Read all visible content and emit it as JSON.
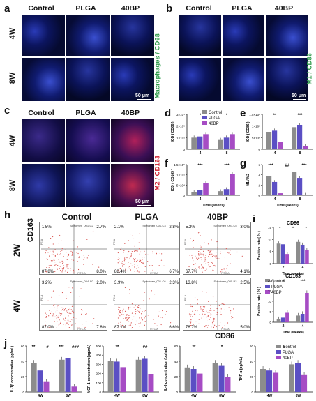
{
  "panels": {
    "a": "a",
    "b": "b",
    "c": "c",
    "d": "d",
    "e": "e",
    "f": "f",
    "g": "g",
    "h": "h",
    "i": "i",
    "j": "j"
  },
  "micro_cols": [
    "Control",
    "PLGA",
    "40BP"
  ],
  "weeks_rows": [
    "4W",
    "8W"
  ],
  "flow_rows": [
    "2W",
    "4W"
  ],
  "labels": {
    "a_side": "Macrophages / CD68",
    "b_side": "M1 / CD86",
    "c_side": "M2 / CD163",
    "scale": "50 μm",
    "flow_y": "CD163",
    "flow_x": "CD86",
    "flow_axis": "FITC-A",
    "flow_axis_y": "PE-A"
  },
  "colors": {
    "control": "#8c8c8c",
    "plga": "#5b4fc4",
    "bp40": "#a64cc4"
  },
  "legend": [
    "Control",
    "PLGA",
    "40BP"
  ],
  "flow_plots": [
    {
      "row": "2W",
      "col": "Control",
      "name": "Specimen_001-C2",
      "q1": "1.5%",
      "q2": "2.7%",
      "q3": "87.8%",
      "q4": "8.0%"
    },
    {
      "row": "2W",
      "col": "PLGA",
      "name": "Specimen_001-C3",
      "q1": "2.1%",
      "q2": "2.8%",
      "q3": "88.4%",
      "q4": "6.7%"
    },
    {
      "row": "2W",
      "col": "40BP",
      "name": "Specimen_001-C5",
      "q1": "5.2%",
      "q2": "3.0%",
      "q3": "67.7%",
      "q4": "4.1%"
    },
    {
      "row": "4W",
      "col": "Control",
      "name": "Specimen_004-A0",
      "q1": "3.2%",
      "q2": "2.0%",
      "q3": "87.0%",
      "q4": "7.8%"
    },
    {
      "row": "4W",
      "col": "PLGA",
      "name": "Specimen_001-C6",
      "q1": "3.9%",
      "q2": "2.3%",
      "q3": "87.1%",
      "q4": "6.6%"
    },
    {
      "row": "4W",
      "col": "40BP",
      "name": "Specimen_005-B2",
      "q1": "13.8%",
      "q2": "2.5%",
      "q3": "78.7%",
      "q4": "5.0%"
    }
  ],
  "chart_data": [
    {
      "panel": "d",
      "type": "bar",
      "ylabel": "IOD ( CD68 )",
      "xlabel": "",
      "categories": [
        "4",
        "8"
      ],
      "ytick_labels": [
        "0",
        "1×10⁵",
        "2×10⁵",
        "3×10⁵"
      ],
      "ylim": [
        0,
        3
      ],
      "series": [
        {
          "name": "Control",
          "values": [
            1.0,
            0.8
          ]
        },
        {
          "name": "PLGA",
          "values": [
            1.1,
            1.0
          ]
        },
        {
          "name": "40BP",
          "values": [
            1.3,
            1.3
          ]
        }
      ],
      "annotations": [
        "*",
        "*"
      ]
    },
    {
      "panel": "e",
      "type": "bar",
      "ylabel": "IOD ( CD86 )",
      "xlabel": "",
      "categories": [
        "4",
        "8"
      ],
      "ytick_labels": [
        "0",
        "5×10⁴",
        "1×10⁵",
        "1.5×10⁵"
      ],
      "ylim": [
        0,
        1.5
      ],
      "series": [
        {
          "name": "Control",
          "values": [
            0.75,
            0.95
          ]
        },
        {
          "name": "PLGA",
          "values": [
            0.8,
            1.05
          ]
        },
        {
          "name": "40BP",
          "values": [
            0.3,
            0.15
          ]
        }
      ],
      "annotations": [
        "**",
        "***"
      ]
    },
    {
      "panel": "f",
      "type": "bar",
      "ylabel": "IOD ( CD163 )",
      "xlabel": "Time (weeks)",
      "categories": [
        "4",
        "8"
      ],
      "ytick_labels": [
        "0",
        "5×10⁴",
        "1×10⁵",
        "1.5×10⁵"
      ],
      "ylim": [
        0,
        1.5
      ],
      "series": [
        {
          "name": "Control",
          "values": [
            0.15,
            0.2
          ]
        },
        {
          "name": "PLGA",
          "values": [
            0.25,
            0.3
          ]
        },
        {
          "name": "40BP",
          "values": [
            0.6,
            1.05
          ]
        }
      ],
      "annotations": [
        "***",
        "***"
      ]
    },
    {
      "panel": "g",
      "type": "bar",
      "ylabel": "M1 / M2",
      "xlabel": "Time (weeks)",
      "categories": [
        "4",
        "8"
      ],
      "ytick_labels": [
        "0",
        "2",
        "4",
        "6"
      ],
      "ylim": [
        0,
        6
      ],
      "series": [
        {
          "name": "Control",
          "values": [
            3.8,
            4.6
          ]
        },
        {
          "name": "PLGA",
          "values": [
            2.6,
            3.4
          ]
        },
        {
          "name": "40BP",
          "values": [
            0.4,
            0.1
          ]
        }
      ],
      "annotations": [
        "***",
        "##",
        "***"
      ]
    },
    {
      "panel": "i-top",
      "type": "bar",
      "title": "CD86",
      "ylabel": "Positive rate ( % )",
      "xlabel": "Time (weeks)",
      "categories": [
        "2",
        "4"
      ],
      "ytick_labels": [
        "0",
        "5",
        "10",
        "15"
      ],
      "ylim": [
        0,
        15
      ],
      "series": [
        {
          "name": "Control",
          "values": [
            8.3,
            9.0
          ]
        },
        {
          "name": "PLGA",
          "values": [
            8.0,
            7.8
          ]
        },
        {
          "name": "40BP",
          "values": [
            4.0,
            5.6
          ]
        }
      ],
      "annotations": [
        "*",
        "**",
        "*"
      ]
    },
    {
      "panel": "i-bottom",
      "type": "bar",
      "title": "CD163",
      "ylabel": "Positive rate ( % )",
      "xlabel": "Time (weeks)",
      "categories": [
        "2",
        "4"
      ],
      "ytick_labels": [
        "0",
        "5",
        "10",
        "15",
        "20"
      ],
      "ylim": [
        0,
        20
      ],
      "series": [
        {
          "name": "Control",
          "values": [
            1.5,
            3.2
          ]
        },
        {
          "name": "PLGA",
          "values": [
            2.2,
            4.0
          ]
        },
        {
          "name": "40BP",
          "values": [
            4.5,
            14.0
          ]
        }
      ],
      "annotations": [
        "*",
        "***"
      ]
    },
    {
      "panel": "j1",
      "type": "bar",
      "ylabel": "IL-1β concentration (pg/mL)",
      "xlabel": "",
      "categories": [
        "4W",
        "8W"
      ],
      "ytick_labels": [
        "0",
        "20",
        "40",
        "60"
      ],
      "ylim": [
        0,
        60
      ],
      "series": [
        {
          "name": "Control",
          "values": [
            38,
            42
          ]
        },
        {
          "name": "PLGA",
          "values": [
            28,
            44
          ]
        },
        {
          "name": "40BP",
          "values": [
            13,
            7
          ]
        }
      ],
      "annotations": [
        "**",
        "#",
        "***",
        "###"
      ]
    },
    {
      "panel": "j2",
      "type": "bar",
      "ylabel": "MCP-1 concentration (pg/mL)",
      "xlabel": "",
      "categories": [
        "4W",
        "8W"
      ],
      "ytick_labels": [
        "0",
        "100",
        "200",
        "300",
        "400",
        "500"
      ],
      "ylim": [
        0,
        500
      ],
      "series": [
        {
          "name": "Control",
          "values": [
            340,
            350
          ]
        },
        {
          "name": "PLGA",
          "values": [
            330,
            360
          ]
        },
        {
          "name": "40BP",
          "values": [
            270,
            190
          ]
        }
      ],
      "annotations": [
        "**",
        "##"
      ]
    },
    {
      "panel": "j3",
      "type": "bar",
      "ylabel": "IL-6 concentration (pg/mL)",
      "xlabel": "",
      "categories": [
        "4W",
        "8W"
      ],
      "ytick_labels": [
        "0",
        "20",
        "40",
        "60"
      ],
      "ylim": [
        0,
        60
      ],
      "series": [
        {
          "name": "Control",
          "values": [
            32,
            38
          ]
        },
        {
          "name": "PLGA",
          "values": [
            30,
            34
          ]
        },
        {
          "name": "40BP",
          "values": [
            24,
            20
          ]
        }
      ],
      "annotations": [
        "**",
        "*"
      ]
    },
    {
      "panel": "j4",
      "type": "bar",
      "ylabel": "TNF-α (pg/mL)",
      "xlabel": "",
      "categories": [
        "4W",
        "8W"
      ],
      "ytick_labels": [
        "0",
        "20",
        "40",
        "60"
      ],
      "ylim": [
        0,
        60
      ],
      "series": [
        {
          "name": "Control",
          "values": [
            30,
            36
          ]
        },
        {
          "name": "PLGA",
          "values": [
            28,
            38
          ]
        },
        {
          "name": "40BP",
          "values": [
            25,
            22
          ]
        }
      ],
      "annotations": [
        "#"
      ]
    }
  ]
}
